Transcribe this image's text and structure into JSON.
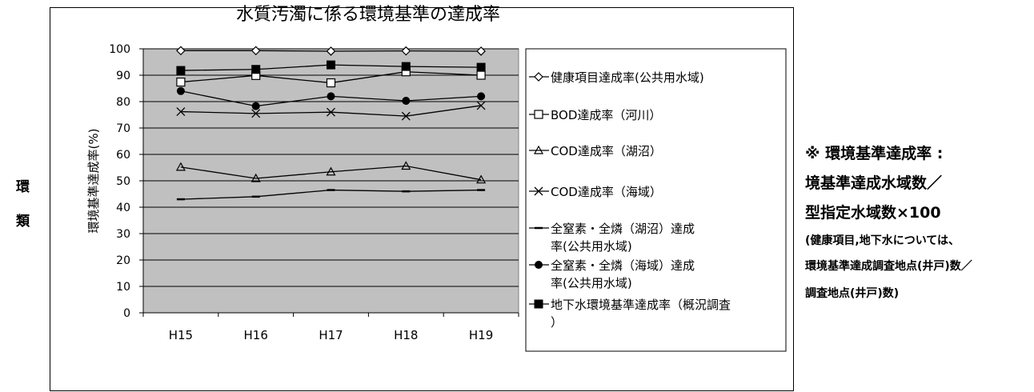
{
  "title": "水質汚濁に係る環境基準の達成率",
  "side_labels": [
    "環",
    "類"
  ],
  "note": {
    "line1": "※ 環境基準達成率 :",
    "line2": "境基準達成水域数／",
    "line3": "型指定水域数×100",
    "line4": "(健康項目,地下水については、",
    "line5": "環境基準達成調査地点(井戸)数／",
    "line6": "調査地点(井戸)数)"
  },
  "chart_data": {
    "type": "line",
    "title": "水質汚濁に係る環境基準の達成率",
    "ylabel": "環境基準達成率(%)",
    "xlabel": "",
    "categories": [
      "H15",
      "H16",
      "H17",
      "H18",
      "H19"
    ],
    "ylim": [
      0,
      100
    ],
    "yticks": [
      0,
      10,
      20,
      30,
      40,
      50,
      60,
      70,
      80,
      90,
      100
    ],
    "grid": true,
    "legend_position": "right",
    "series": [
      {
        "name": "健康項目達成率(公共用水域)",
        "marker": "diamond-open",
        "values": [
          99.3,
          99.3,
          99.1,
          99.2,
          99.1
        ]
      },
      {
        "name": "BOD達成率（河川）",
        "marker": "square-open",
        "values": [
          87.4,
          89.9,
          87.1,
          91.3,
          90.0
        ]
      },
      {
        "name": "COD達成率（湖沼）",
        "marker": "triangle-open",
        "values": [
          55.2,
          50.9,
          53.4,
          55.6,
          50.4
        ]
      },
      {
        "name": "COD達成率（海域）",
        "marker": "x",
        "values": [
          76.2,
          75.5,
          76.0,
          74.5,
          78.5
        ]
      },
      {
        "name": "全窒素・全燐（湖沼）達成率(公共用水域)",
        "marker": "dash",
        "values": [
          43.0,
          44.0,
          46.5,
          46.0,
          46.5
        ]
      },
      {
        "name": "全窒素・全燐（海域）達成率(公共用水域)",
        "marker": "circle-filled",
        "values": [
          84.0,
          78.3,
          82.0,
          80.3,
          82.0
        ]
      },
      {
        "name": "地下水環境基準達成率（概況調査）",
        "marker": "square-filled",
        "values": [
          91.8,
          92.2,
          93.9,
          93.3,
          93.0
        ]
      }
    ]
  }
}
